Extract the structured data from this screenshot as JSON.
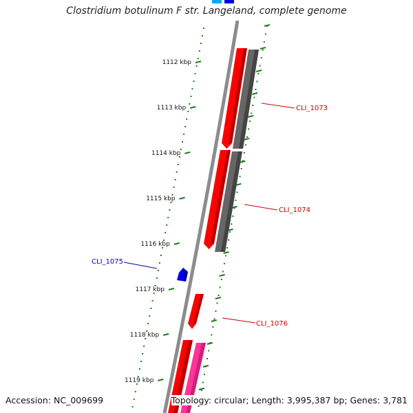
{
  "title": "Clostridium botulinum F str. Langeland, complete genome",
  "footer": {
    "accession": "Accession: NC_009699",
    "topology": "Topology: circular; Length: 3,995,387 bp; Genes: 3,781"
  },
  "ruler": {
    "labels": [
      "1112 kbp",
      "1113 kbp",
      "1114 kbp",
      "1115 kbp",
      "1116 kbp",
      "1117 kbp",
      "1118 kbp",
      "1119 kbp"
    ]
  },
  "genes": [
    {
      "name": "CLI_1073",
      "color": "#cc0000"
    },
    {
      "name": "CLI_1074",
      "color": "#cc0000"
    },
    {
      "name": "CLI_1075",
      "color": "#0000aa"
    },
    {
      "name": "CLI_1076",
      "color": "#cc0000"
    }
  ],
  "colors": {
    "backbone": "#8c8c8c",
    "cds": "#ff0000",
    "cds_dark": "#b80000",
    "gene_track": "#666666",
    "gene_track_dark": "#444444",
    "tick": "#1f7a1f",
    "blue_feature": "#0000ee",
    "pink_feature": "#ff3399"
  }
}
